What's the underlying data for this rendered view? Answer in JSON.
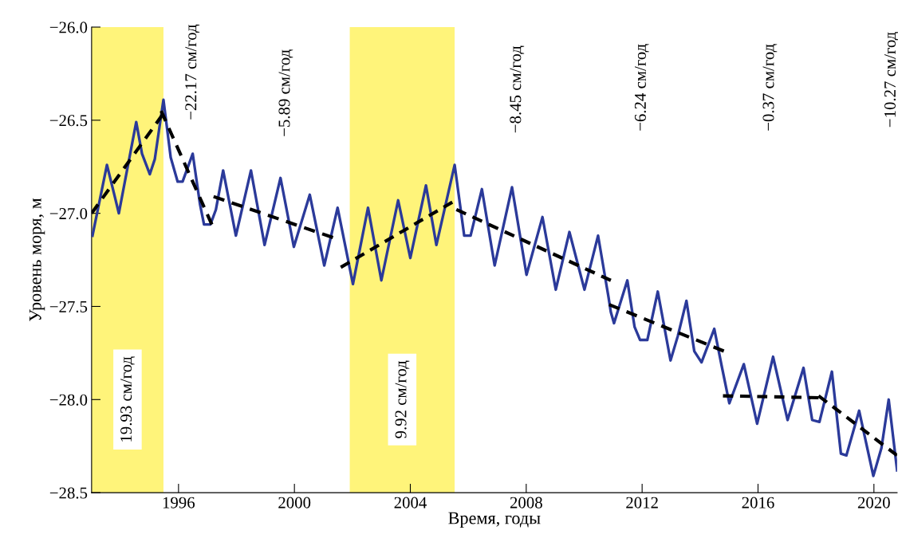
{
  "chart_data": {
    "type": "line",
    "xlabel": "Время, годы",
    "ylabel": "Уровень моря, м",
    "xlim": [
      1993.0,
      2020.8
    ],
    "xticks": [
      1996,
      2000,
      2004,
      2008,
      2012,
      2016,
      2020
    ],
    "ylim": [
      -28.5,
      -26.0
    ],
    "yticks": [
      {
        "value": -28.5,
        "label": "−28.5"
      },
      {
        "value": -28.0,
        "label": "−28.0"
      },
      {
        "value": -27.5,
        "label": "−27.5"
      },
      {
        "value": -27.0,
        "label": "−27.0"
      },
      {
        "value": -26.5,
        "label": "−26.5"
      },
      {
        "value": -26.0,
        "label": "−26.0"
      }
    ],
    "grid": false,
    "marker": "none",
    "bands": [
      {
        "axis": "x",
        "from": 1993.0,
        "to": 1995.48,
        "color": "#fff47a"
      },
      {
        "axis": "x",
        "from": 2001.91,
        "to": 2005.53,
        "color": "#fff47a"
      }
    ],
    "series": [
      {
        "type": "line",
        "color": "#2b3a9a",
        "line_style": "solid",
        "x": [
          1993.03,
          1993.53,
          1993.8,
          1993.94,
          1994.54,
          1994.74,
          1995.01,
          1995.18,
          1995.48,
          1995.73,
          1995.97,
          1996.14,
          1996.49,
          1996.74,
          1996.88,
          1997.1,
          1997.29,
          1997.54,
          1997.98,
          1998.5,
          1998.97,
          1999.52,
          1999.98,
          2000.53,
          2001.03,
          2001.49,
          2002.02,
          2002.54,
          2003.0,
          2003.58,
          2004.0,
          2004.54,
          2004.9,
          2005.53,
          2005.86,
          2006.08,
          2006.47,
          2006.91,
          2007.51,
          2008.01,
          2008.56,
          2009.02,
          2009.49,
          2010.01,
          2010.48,
          2010.84,
          2010.92,
          2011.03,
          2011.49,
          2011.74,
          2011.93,
          2012.18,
          2012.54,
          2012.98,
          2013.23,
          2013.53,
          2013.8,
          2014.05,
          2014.49,
          2014.76,
          2015.01,
          2015.51,
          2015.97,
          2016.52,
          2017.02,
          2017.57,
          2017.87,
          2018.12,
          2018.55,
          2018.86,
          2019.05,
          2019.49,
          2019.98,
          2020.26,
          2020.51,
          2020.8
        ],
        "values": [
          -27.12,
          -26.74,
          -26.91,
          -27.0,
          -26.51,
          -26.68,
          -26.79,
          -26.71,
          -26.39,
          -26.7,
          -26.83,
          -26.83,
          -26.68,
          -26.95,
          -27.06,
          -27.06,
          -26.98,
          -26.77,
          -27.12,
          -26.77,
          -27.17,
          -26.81,
          -27.18,
          -26.9,
          -27.28,
          -26.97,
          -27.38,
          -26.97,
          -27.36,
          -26.93,
          -27.24,
          -26.85,
          -27.17,
          -26.74,
          -27.12,
          -27.12,
          -26.87,
          -27.28,
          -26.86,
          -27.33,
          -27.02,
          -27.41,
          -27.1,
          -27.41,
          -27.12,
          -27.45,
          -27.53,
          -27.59,
          -27.36,
          -27.61,
          -27.68,
          -27.68,
          -27.42,
          -27.79,
          -27.66,
          -27.47,
          -27.74,
          -27.8,
          -27.62,
          -27.83,
          -28.02,
          -27.81,
          -28.13,
          -27.77,
          -28.11,
          -27.83,
          -28.11,
          -28.12,
          -27.85,
          -28.29,
          -28.3,
          -28.06,
          -28.41,
          -28.26,
          -28.0,
          -28.38
        ]
      },
      {
        "type": "line",
        "color": "#000000",
        "line_style": "dashed",
        "x": [
          1993.0,
          1995.45
        ],
        "values": [
          -27.0,
          -26.47
        ]
      },
      {
        "type": "line",
        "color": "#000000",
        "line_style": "dashed",
        "x": [
          1995.4,
          1997.15
        ],
        "values": [
          -26.45,
          -27.06
        ]
      },
      {
        "type": "line",
        "color": "#000000",
        "line_style": "dashed",
        "x": [
          1997.21,
          2001.33
        ],
        "values": [
          -26.91,
          -27.13
        ]
      },
      {
        "type": "line",
        "color": "#000000",
        "line_style": "dashed",
        "x": [
          2001.6,
          2005.45
        ],
        "values": [
          -27.29,
          -26.94
        ]
      },
      {
        "type": "line",
        "color": "#000000",
        "line_style": "dashed",
        "x": [
          2005.59,
          2010.92
        ],
        "values": [
          -26.98,
          -27.36
        ]
      },
      {
        "type": "line",
        "color": "#000000",
        "line_style": "dashed",
        "x": [
          2010.86,
          2014.82
        ],
        "values": [
          -27.49,
          -27.74
        ]
      },
      {
        "type": "line",
        "color": "#000000",
        "line_style": "dashed",
        "x": [
          2014.79,
          2018.09
        ],
        "values": [
          -27.98,
          -27.99
        ]
      },
      {
        "type": "line",
        "color": "#000000",
        "line_style": "dashed",
        "x": [
          2018.09,
          2020.8
        ],
        "values": [
          -27.98,
          -28.3
        ]
      }
    ],
    "annotations": [
      "19.93 см/год",
      "9.92 см/год",
      "−22.17 см/год",
      "−5.89 см/год",
      "−8.45 см/год",
      "−6.24 см/год",
      "−0.37 см/год",
      "−10.27 см/год"
    ]
  }
}
